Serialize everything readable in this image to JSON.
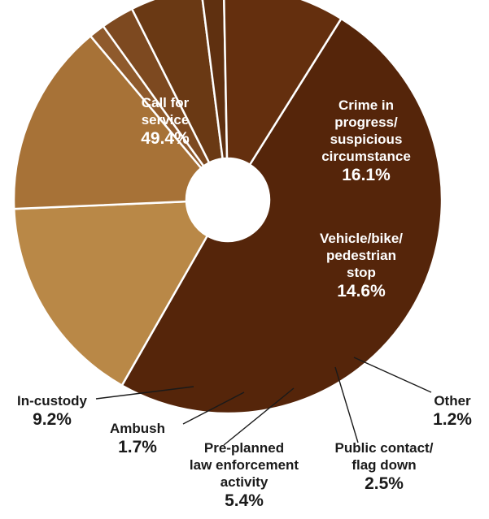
{
  "chart_data": {
    "type": "pie",
    "donut": true,
    "title": "",
    "slices": [
      {
        "label": "Call for service",
        "display": [
          "Call for",
          "service"
        ],
        "value": 49.4,
        "value_label": "49.4%",
        "color": "#55250a"
      },
      {
        "label": "Crime in progress/suspicious circumstance",
        "display": [
          "Crime in",
          "progress/",
          "suspicious",
          "circumstance"
        ],
        "value": 16.1,
        "value_label": "16.1%",
        "color": "#b98847"
      },
      {
        "label": "Vehicle/bike/pedestrian stop",
        "display": [
          "Vehicle/bike/",
          "pedestrian",
          "stop"
        ],
        "value": 14.6,
        "value_label": "14.6%",
        "color": "#a77237"
      },
      {
        "label": "Other",
        "display": [
          "Other"
        ],
        "value": 1.2,
        "value_label": "1.2%",
        "color": "#8f5a2c"
      },
      {
        "label": "Public contact/flag down",
        "display": [
          "Public contact/",
          "flag down"
        ],
        "value": 2.5,
        "value_label": "2.5%",
        "color": "#7d4920"
      },
      {
        "label": "Pre-planned law enforcement activity",
        "display": [
          "Pre-planned",
          "law enforcement",
          "activity"
        ],
        "value": 5.4,
        "value_label": "5.4%",
        "color": "#6a3914"
      },
      {
        "label": "Ambush",
        "display": [
          "Ambush"
        ],
        "value": 1.7,
        "value_label": "1.7%",
        "color": "#5f3010"
      },
      {
        "label": "In-custody",
        "display": [
          "In-custody"
        ],
        "value": 9.2,
        "value_label": "9.2%",
        "color": "#642f0e"
      }
    ],
    "legend": "none"
  }
}
